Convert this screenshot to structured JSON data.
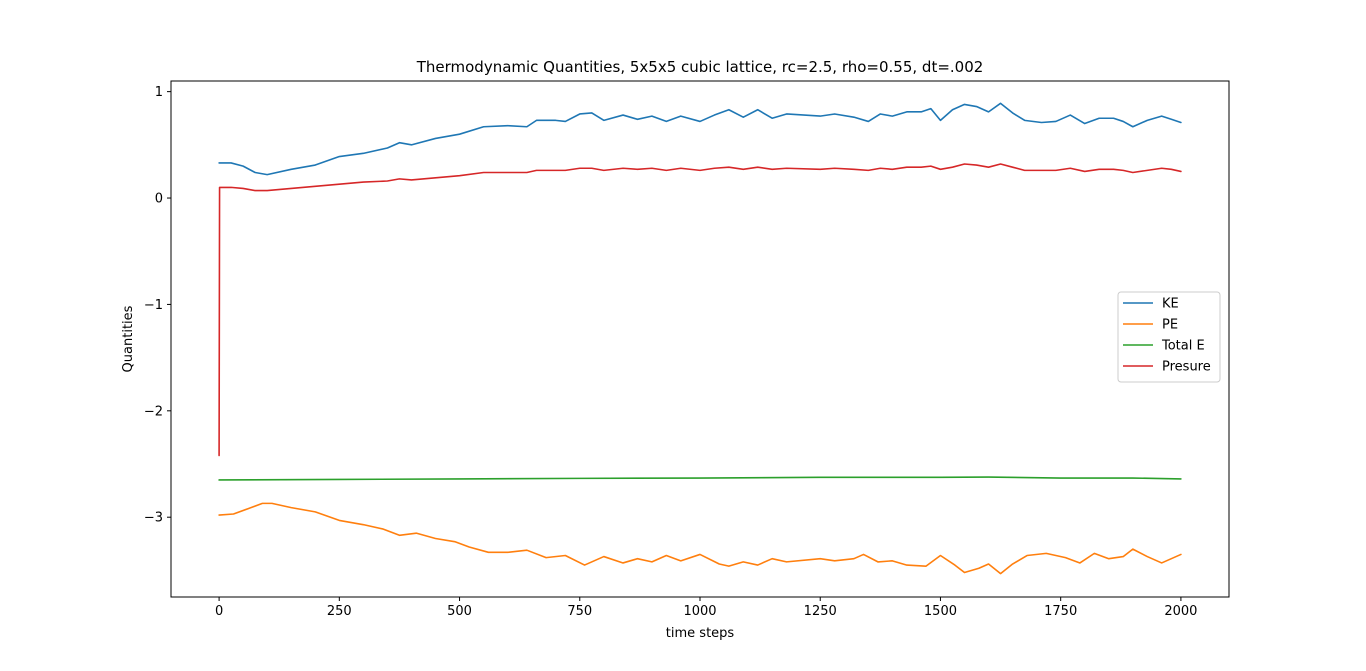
{
  "chart_data": {
    "type": "line",
    "title": "Thermodynamic Quantities, 5x5x5 cubic lattice, rc=2.5, rho=0.55, dt=.002",
    "xlabel": "time steps",
    "ylabel": "Quantities",
    "xlim": [
      -100,
      2100
    ],
    "ylim": [
      -3.75,
      1.1
    ],
    "xticks": [
      0,
      250,
      500,
      750,
      1000,
      1250,
      1500,
      1750,
      2000
    ],
    "yticks": [
      -3,
      -2,
      -1,
      0,
      1
    ],
    "ytick_labels": [
      "−3",
      "−2",
      "−1",
      "0",
      "1"
    ],
    "grid": false,
    "legend": "center-right",
    "series": [
      {
        "name": "KE",
        "color": "#1f77b4",
        "points": [
          [
            0,
            0.33
          ],
          [
            25,
            0.33
          ],
          [
            50,
            0.3
          ],
          [
            75,
            0.24
          ],
          [
            100,
            0.22
          ],
          [
            150,
            0.27
          ],
          [
            200,
            0.31
          ],
          [
            250,
            0.39
          ],
          [
            300,
            0.42
          ],
          [
            350,
            0.47
          ],
          [
            375,
            0.52
          ],
          [
            400,
            0.5
          ],
          [
            450,
            0.56
          ],
          [
            500,
            0.6
          ],
          [
            550,
            0.67
          ],
          [
            600,
            0.68
          ],
          [
            640,
            0.67
          ],
          [
            660,
            0.73
          ],
          [
            700,
            0.73
          ],
          [
            720,
            0.72
          ],
          [
            750,
            0.79
          ],
          [
            775,
            0.8
          ],
          [
            800,
            0.73
          ],
          [
            840,
            0.78
          ],
          [
            870,
            0.74
          ],
          [
            900,
            0.77
          ],
          [
            930,
            0.72
          ],
          [
            960,
            0.77
          ],
          [
            1000,
            0.72
          ],
          [
            1030,
            0.78
          ],
          [
            1060,
            0.83
          ],
          [
            1090,
            0.76
          ],
          [
            1120,
            0.83
          ],
          [
            1150,
            0.75
          ],
          [
            1180,
            0.79
          ],
          [
            1250,
            0.77
          ],
          [
            1280,
            0.79
          ],
          [
            1320,
            0.76
          ],
          [
            1350,
            0.72
          ],
          [
            1375,
            0.79
          ],
          [
            1400,
            0.77
          ],
          [
            1430,
            0.81
          ],
          [
            1460,
            0.81
          ],
          [
            1480,
            0.84
          ],
          [
            1500,
            0.73
          ],
          [
            1525,
            0.83
          ],
          [
            1550,
            0.88
          ],
          [
            1575,
            0.86
          ],
          [
            1600,
            0.81
          ],
          [
            1625,
            0.89
          ],
          [
            1650,
            0.8
          ],
          [
            1675,
            0.73
          ],
          [
            1710,
            0.71
          ],
          [
            1740,
            0.72
          ],
          [
            1770,
            0.78
          ],
          [
            1800,
            0.7
          ],
          [
            1830,
            0.75
          ],
          [
            1860,
            0.75
          ],
          [
            1880,
            0.72
          ],
          [
            1900,
            0.67
          ],
          [
            1930,
            0.73
          ],
          [
            1960,
            0.77
          ],
          [
            1980,
            0.74
          ],
          [
            2000,
            0.71
          ]
        ]
      },
      {
        "name": "PE",
        "color": "#ff7f0e",
        "points": [
          [
            0,
            -2.98
          ],
          [
            30,
            -2.97
          ],
          [
            60,
            -2.92
          ],
          [
            90,
            -2.87
          ],
          [
            110,
            -2.87
          ],
          [
            150,
            -2.91
          ],
          [
            200,
            -2.95
          ],
          [
            250,
            -3.03
          ],
          [
            300,
            -3.07
          ],
          [
            340,
            -3.11
          ],
          [
            375,
            -3.17
          ],
          [
            410,
            -3.15
          ],
          [
            450,
            -3.2
          ],
          [
            490,
            -3.23
          ],
          [
            520,
            -3.28
          ],
          [
            560,
            -3.33
          ],
          [
            600,
            -3.33
          ],
          [
            640,
            -3.31
          ],
          [
            680,
            -3.38
          ],
          [
            720,
            -3.36
          ],
          [
            760,
            -3.45
          ],
          [
            800,
            -3.37
          ],
          [
            840,
            -3.43
          ],
          [
            870,
            -3.39
          ],
          [
            900,
            -3.42
          ],
          [
            930,
            -3.36
          ],
          [
            960,
            -3.41
          ],
          [
            1000,
            -3.35
          ],
          [
            1040,
            -3.44
          ],
          [
            1060,
            -3.46
          ],
          [
            1090,
            -3.42
          ],
          [
            1120,
            -3.45
          ],
          [
            1150,
            -3.39
          ],
          [
            1180,
            -3.42
          ],
          [
            1250,
            -3.39
          ],
          [
            1280,
            -3.41
          ],
          [
            1320,
            -3.39
          ],
          [
            1340,
            -3.35
          ],
          [
            1370,
            -3.42
          ],
          [
            1400,
            -3.41
          ],
          [
            1430,
            -3.45
          ],
          [
            1470,
            -3.46
          ],
          [
            1500,
            -3.36
          ],
          [
            1530,
            -3.45
          ],
          [
            1550,
            -3.52
          ],
          [
            1580,
            -3.48
          ],
          [
            1600,
            -3.44
          ],
          [
            1625,
            -3.53
          ],
          [
            1650,
            -3.44
          ],
          [
            1680,
            -3.36
          ],
          [
            1720,
            -3.34
          ],
          [
            1760,
            -3.38
          ],
          [
            1790,
            -3.43
          ],
          [
            1820,
            -3.34
          ],
          [
            1850,
            -3.39
          ],
          [
            1880,
            -3.37
          ],
          [
            1900,
            -3.3
          ],
          [
            1930,
            -3.37
          ],
          [
            1960,
            -3.43
          ],
          [
            2000,
            -3.35
          ]
        ]
      },
      {
        "name": "Total E",
        "color": "#2ca02c",
        "points": [
          [
            0,
            -2.65
          ],
          [
            250,
            -2.645
          ],
          [
            500,
            -2.64
          ],
          [
            750,
            -2.635
          ],
          [
            1000,
            -2.632
          ],
          [
            1250,
            -2.625
          ],
          [
            1500,
            -2.625
          ],
          [
            1600,
            -2.623
          ],
          [
            1750,
            -2.632
          ],
          [
            1900,
            -2.632
          ],
          [
            2000,
            -2.64
          ]
        ]
      },
      {
        "name": "Presure",
        "color": "#d62728",
        "points": [
          [
            0,
            -2.42
          ],
          [
            1,
            0.1
          ],
          [
            25,
            0.1
          ],
          [
            50,
            0.09
          ],
          [
            75,
            0.07
          ],
          [
            100,
            0.07
          ],
          [
            150,
            0.09
          ],
          [
            200,
            0.11
          ],
          [
            250,
            0.13
          ],
          [
            300,
            0.15
          ],
          [
            350,
            0.16
          ],
          [
            375,
            0.18
          ],
          [
            400,
            0.17
          ],
          [
            450,
            0.19
          ],
          [
            500,
            0.21
          ],
          [
            550,
            0.24
          ],
          [
            600,
            0.24
          ],
          [
            640,
            0.24
          ],
          [
            660,
            0.26
          ],
          [
            720,
            0.26
          ],
          [
            750,
            0.28
          ],
          [
            775,
            0.28
          ],
          [
            800,
            0.26
          ],
          [
            840,
            0.28
          ],
          [
            870,
            0.27
          ],
          [
            900,
            0.28
          ],
          [
            930,
            0.26
          ],
          [
            960,
            0.28
          ],
          [
            1000,
            0.26
          ],
          [
            1030,
            0.28
          ],
          [
            1060,
            0.29
          ],
          [
            1090,
            0.27
          ],
          [
            1120,
            0.29
          ],
          [
            1150,
            0.27
          ],
          [
            1180,
            0.28
          ],
          [
            1250,
            0.27
          ],
          [
            1280,
            0.28
          ],
          [
            1320,
            0.27
          ],
          [
            1350,
            0.26
          ],
          [
            1375,
            0.28
          ],
          [
            1400,
            0.27
          ],
          [
            1430,
            0.29
          ],
          [
            1460,
            0.29
          ],
          [
            1480,
            0.3
          ],
          [
            1500,
            0.27
          ],
          [
            1525,
            0.29
          ],
          [
            1550,
            0.32
          ],
          [
            1575,
            0.31
          ],
          [
            1600,
            0.29
          ],
          [
            1625,
            0.32
          ],
          [
            1650,
            0.29
          ],
          [
            1675,
            0.26
          ],
          [
            1710,
            0.26
          ],
          [
            1740,
            0.26
          ],
          [
            1770,
            0.28
          ],
          [
            1800,
            0.25
          ],
          [
            1830,
            0.27
          ],
          [
            1860,
            0.27
          ],
          [
            1880,
            0.26
          ],
          [
            1900,
            0.24
          ],
          [
            1930,
            0.26
          ],
          [
            1960,
            0.28
          ],
          [
            1980,
            0.27
          ],
          [
            2000,
            0.25
          ]
        ]
      }
    ]
  }
}
